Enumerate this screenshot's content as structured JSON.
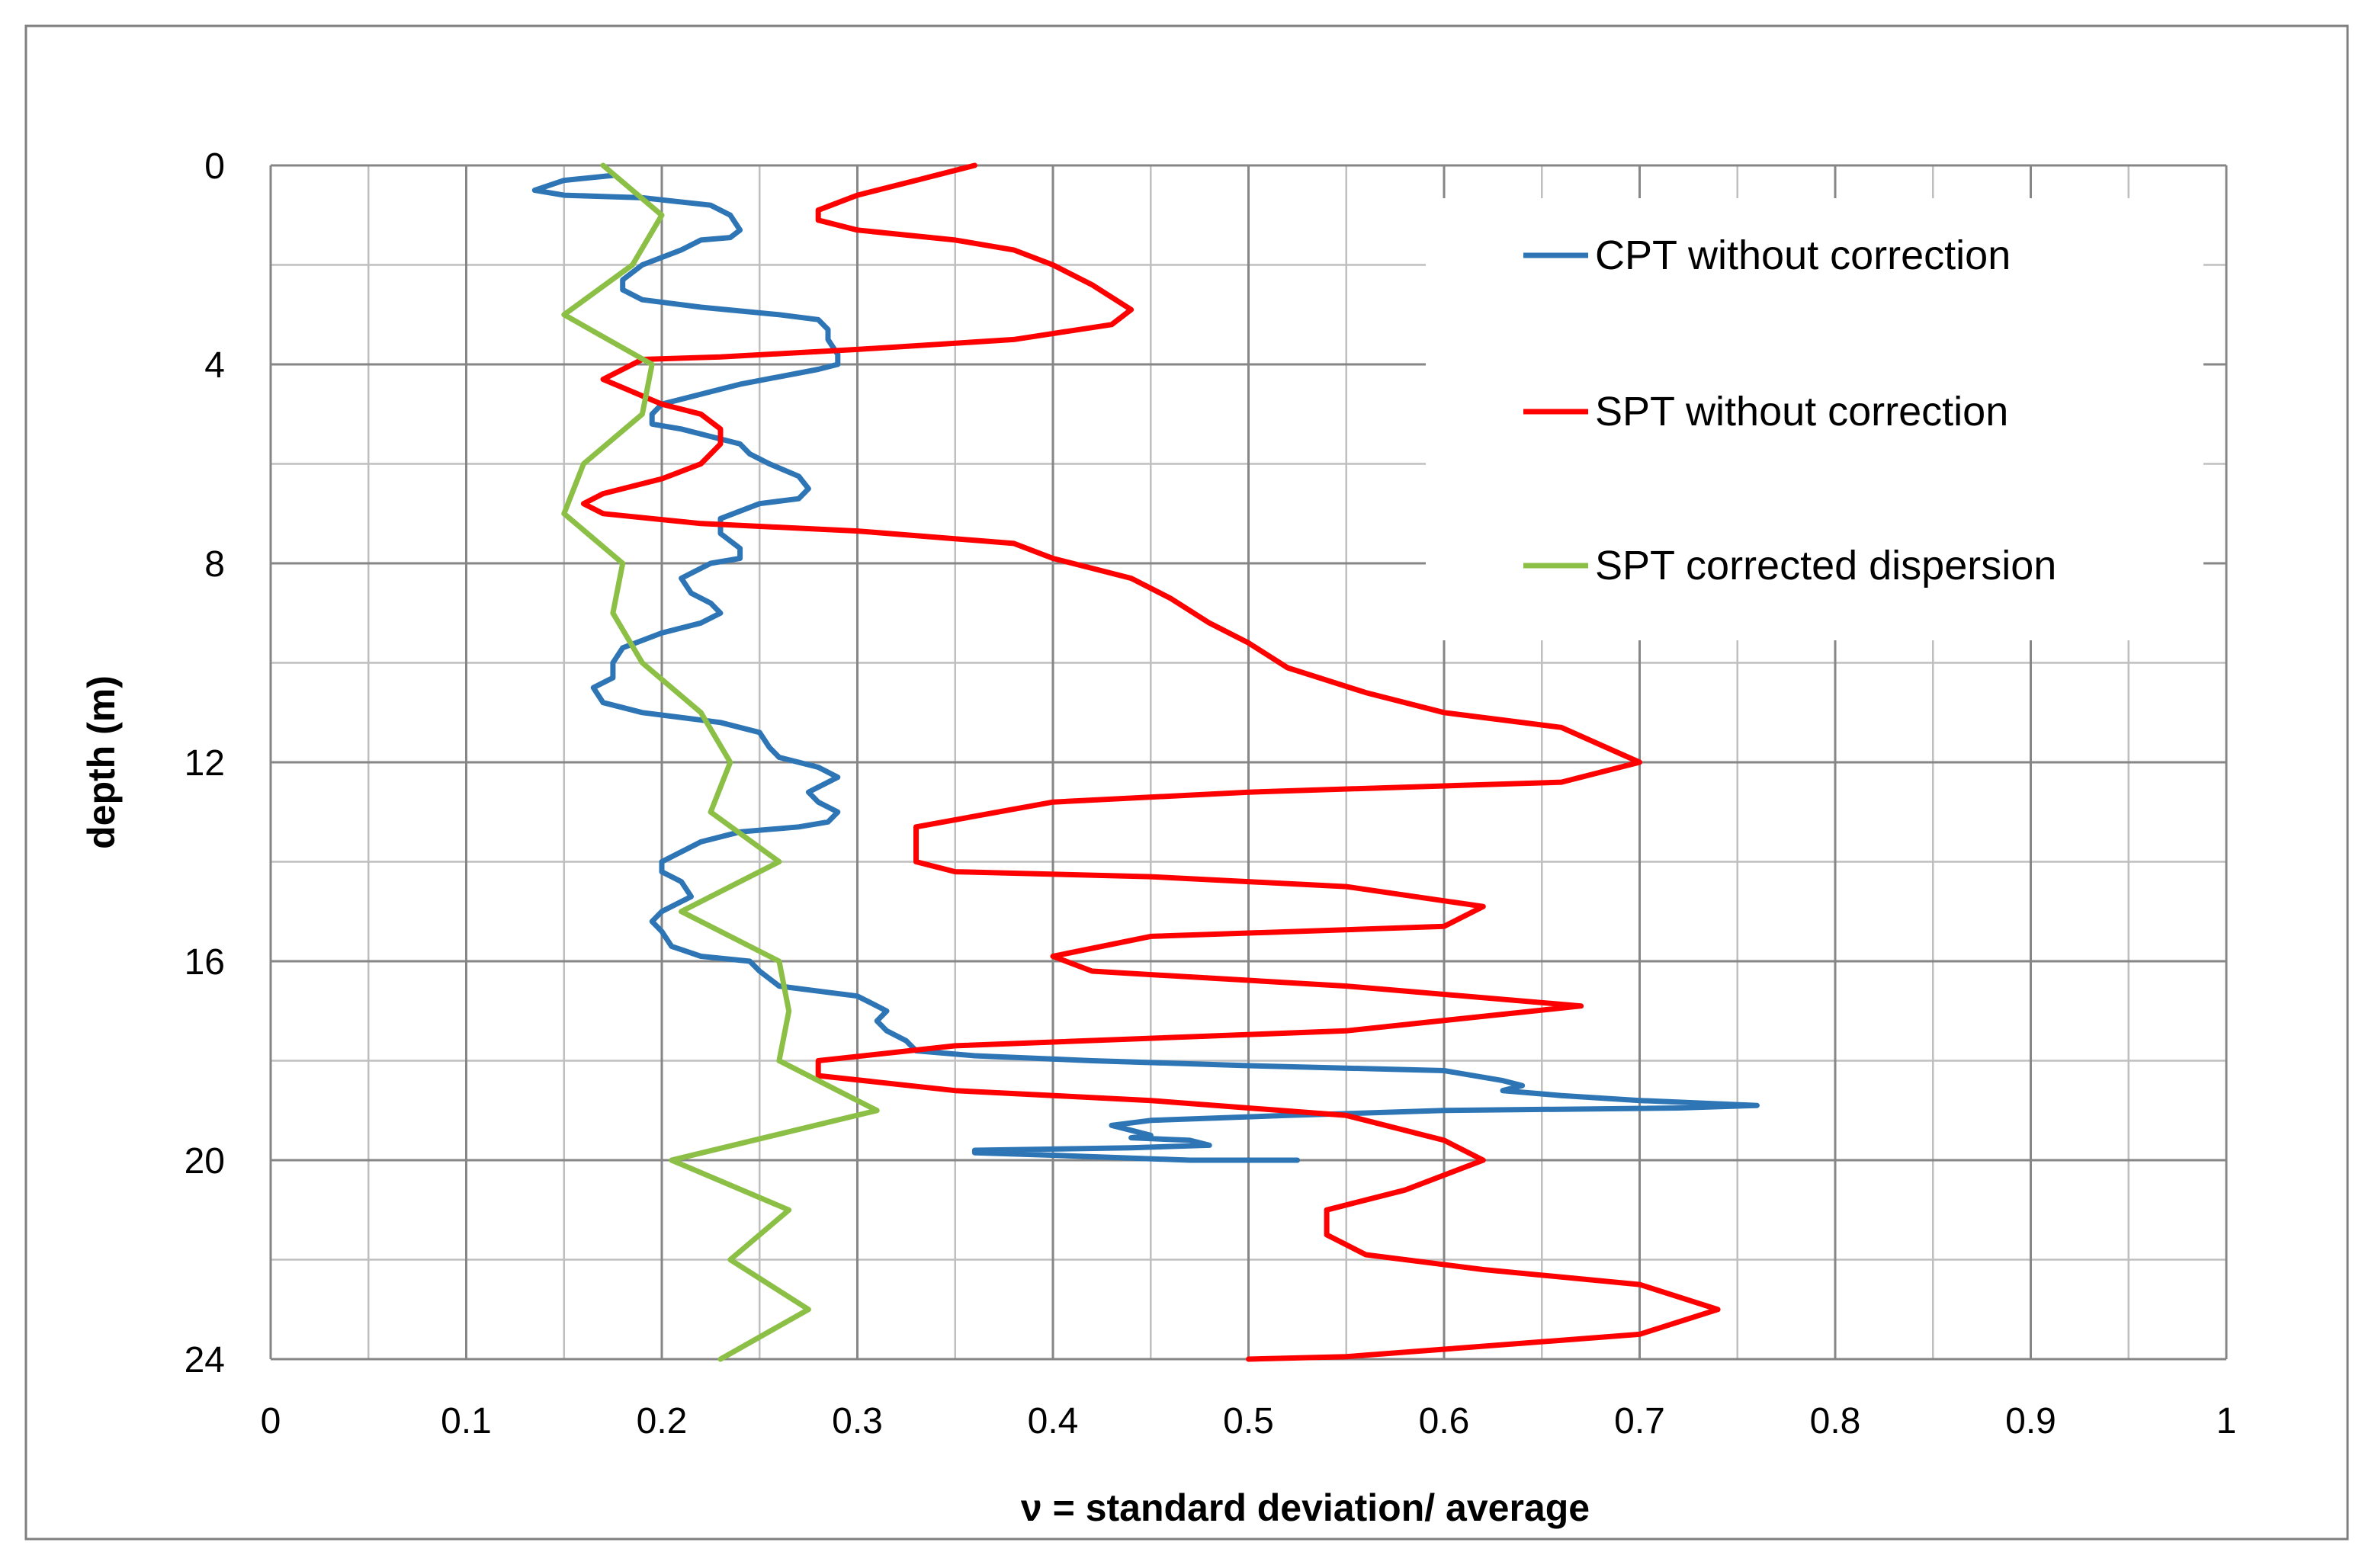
{
  "chart_data": {
    "type": "line",
    "title": "",
    "xlabel": "ν = standard deviation/ average",
    "ylabel": "depth  (m)",
    "xlim": [
      0,
      1
    ],
    "ylim": [
      0,
      24
    ],
    "y_inverted": true,
    "x_ticks": [
      0,
      0.1,
      0.2,
      0.3,
      0.4,
      0.5,
      0.6,
      0.7,
      0.8,
      0.9,
      1
    ],
    "x_tick_labels": [
      "0",
      "0.1",
      "0.2",
      "0.3",
      "0.4",
      "0.5",
      "0.6",
      "0.7",
      "0.8",
      "0.9",
      "1"
    ],
    "y_ticks": [
      0,
      4,
      8,
      12,
      16,
      20,
      24
    ],
    "y_tick_labels": [
      "0",
      "4",
      "8",
      "12",
      "16",
      "20",
      "24"
    ],
    "x_minor_step": 0.05,
    "y_minor_step": 2,
    "grid": true,
    "legend_position": "top-right",
    "series": [
      {
        "name": "CPT without correction",
        "color": "#2e75b6",
        "points": [
          [
            0.175,
            0.2
          ],
          [
            0.15,
            0.3
          ],
          [
            0.135,
            0.5
          ],
          [
            0.15,
            0.6
          ],
          [
            0.19,
            0.65
          ],
          [
            0.225,
            0.8
          ],
          [
            0.235,
            1.0
          ],
          [
            0.24,
            1.3
          ],
          [
            0.235,
            1.45
          ],
          [
            0.22,
            1.5
          ],
          [
            0.21,
            1.7
          ],
          [
            0.19,
            2.0
          ],
          [
            0.18,
            2.3
          ],
          [
            0.18,
            2.5
          ],
          [
            0.19,
            2.7
          ],
          [
            0.22,
            2.85
          ],
          [
            0.26,
            3.0
          ],
          [
            0.28,
            3.1
          ],
          [
            0.285,
            3.3
          ],
          [
            0.285,
            3.5
          ],
          [
            0.29,
            3.8
          ],
          [
            0.29,
            4.0
          ],
          [
            0.28,
            4.1
          ],
          [
            0.26,
            4.25
          ],
          [
            0.24,
            4.4
          ],
          [
            0.22,
            4.6
          ],
          [
            0.2,
            4.8
          ],
          [
            0.195,
            5.0
          ],
          [
            0.195,
            5.2
          ],
          [
            0.21,
            5.3
          ],
          [
            0.225,
            5.45
          ],
          [
            0.24,
            5.6
          ],
          [
            0.245,
            5.8
          ],
          [
            0.255,
            6.0
          ],
          [
            0.27,
            6.25
          ],
          [
            0.275,
            6.5
          ],
          [
            0.27,
            6.7
          ],
          [
            0.25,
            6.8
          ],
          [
            0.23,
            7.1
          ],
          [
            0.23,
            7.4
          ],
          [
            0.24,
            7.7
          ],
          [
            0.24,
            7.9
          ],
          [
            0.225,
            8.0
          ],
          [
            0.21,
            8.3
          ],
          [
            0.215,
            8.6
          ],
          [
            0.225,
            8.8
          ],
          [
            0.23,
            9.0
          ],
          [
            0.22,
            9.2
          ],
          [
            0.2,
            9.4
          ],
          [
            0.18,
            9.7
          ],
          [
            0.175,
            10.0
          ],
          [
            0.175,
            10.3
          ],
          [
            0.165,
            10.5
          ],
          [
            0.17,
            10.8
          ],
          [
            0.19,
            11.0
          ],
          [
            0.23,
            11.2
          ],
          [
            0.25,
            11.4
          ],
          [
            0.255,
            11.7
          ],
          [
            0.26,
            11.9
          ],
          [
            0.28,
            12.1
          ],
          [
            0.29,
            12.3
          ],
          [
            0.28,
            12.5
          ],
          [
            0.275,
            12.6
          ],
          [
            0.28,
            12.8
          ],
          [
            0.29,
            13.0
          ],
          [
            0.285,
            13.2
          ],
          [
            0.27,
            13.3
          ],
          [
            0.24,
            13.4
          ],
          [
            0.22,
            13.6
          ],
          [
            0.21,
            13.8
          ],
          [
            0.2,
            14.0
          ],
          [
            0.2,
            14.2
          ],
          [
            0.21,
            14.4
          ],
          [
            0.215,
            14.7
          ],
          [
            0.2,
            15.0
          ],
          [
            0.195,
            15.2
          ],
          [
            0.2,
            15.4
          ],
          [
            0.205,
            15.7
          ],
          [
            0.22,
            15.9
          ],
          [
            0.245,
            16.0
          ],
          [
            0.25,
            16.2
          ],
          [
            0.26,
            16.5
          ],
          [
            0.28,
            16.6
          ],
          [
            0.3,
            16.7
          ],
          [
            0.31,
            16.9
          ],
          [
            0.315,
            17.0
          ],
          [
            0.31,
            17.2
          ],
          [
            0.315,
            17.4
          ],
          [
            0.325,
            17.6
          ],
          [
            0.33,
            17.8
          ],
          [
            0.36,
            17.9
          ],
          [
            0.42,
            18.0
          ],
          [
            0.5,
            18.1
          ],
          [
            0.6,
            18.2
          ],
          [
            0.63,
            18.4
          ],
          [
            0.64,
            18.5
          ],
          [
            0.63,
            18.6
          ],
          [
            0.66,
            18.7
          ],
          [
            0.7,
            18.8
          ],
          [
            0.76,
            18.9
          ],
          [
            0.72,
            18.95
          ],
          [
            0.6,
            19.0
          ],
          [
            0.52,
            19.1
          ],
          [
            0.45,
            19.2
          ],
          [
            0.43,
            19.3
          ],
          [
            0.44,
            19.4
          ],
          [
            0.45,
            19.5
          ],
          [
            0.44,
            19.55
          ],
          [
            0.47,
            19.6
          ],
          [
            0.48,
            19.7
          ],
          [
            0.44,
            19.75
          ],
          [
            0.36,
            19.8
          ],
          [
            0.36,
            19.85
          ],
          [
            0.4,
            19.9
          ],
          [
            0.47,
            20.0
          ],
          [
            0.525,
            20.0
          ]
        ]
      },
      {
        "name": "SPT without correction",
        "color": "#ff0000",
        "points": [
          [
            0.36,
            0.0
          ],
          [
            0.33,
            0.3
          ],
          [
            0.3,
            0.6
          ],
          [
            0.28,
            0.9
          ],
          [
            0.28,
            1.1
          ],
          [
            0.3,
            1.3
          ],
          [
            0.35,
            1.5
          ],
          [
            0.38,
            1.7
          ],
          [
            0.4,
            2.0
          ],
          [
            0.42,
            2.4
          ],
          [
            0.44,
            2.9
          ],
          [
            0.43,
            3.2
          ],
          [
            0.38,
            3.5
          ],
          [
            0.3,
            3.7
          ],
          [
            0.23,
            3.85
          ],
          [
            0.19,
            3.9
          ],
          [
            0.17,
            4.3
          ],
          [
            0.2,
            4.8
          ],
          [
            0.22,
            5.0
          ],
          [
            0.23,
            5.3
          ],
          [
            0.23,
            5.6
          ],
          [
            0.22,
            6.0
          ],
          [
            0.2,
            6.3
          ],
          [
            0.17,
            6.6
          ],
          [
            0.16,
            6.8
          ],
          [
            0.17,
            7.0
          ],
          [
            0.22,
            7.2
          ],
          [
            0.3,
            7.35
          ],
          [
            0.38,
            7.6
          ],
          [
            0.4,
            7.9
          ],
          [
            0.42,
            8.1
          ],
          [
            0.44,
            8.3
          ],
          [
            0.46,
            8.7
          ],
          [
            0.48,
            9.2
          ],
          [
            0.5,
            9.6
          ],
          [
            0.52,
            10.1
          ],
          [
            0.56,
            10.6
          ],
          [
            0.6,
            11.0
          ],
          [
            0.66,
            11.3
          ],
          [
            0.7,
            12.0
          ],
          [
            0.66,
            12.4
          ],
          [
            0.5,
            12.6
          ],
          [
            0.4,
            12.8
          ],
          [
            0.33,
            13.3
          ],
          [
            0.33,
            14.0
          ],
          [
            0.35,
            14.2
          ],
          [
            0.45,
            14.3
          ],
          [
            0.55,
            14.5
          ],
          [
            0.62,
            14.9
          ],
          [
            0.6,
            15.3
          ],
          [
            0.45,
            15.5
          ],
          [
            0.4,
            15.9
          ],
          [
            0.42,
            16.2
          ],
          [
            0.55,
            16.5
          ],
          [
            0.67,
            16.9
          ],
          [
            0.55,
            17.4
          ],
          [
            0.35,
            17.7
          ],
          [
            0.28,
            18.0
          ],
          [
            0.28,
            18.3
          ],
          [
            0.35,
            18.6
          ],
          [
            0.45,
            18.8
          ],
          [
            0.55,
            19.1
          ],
          [
            0.6,
            19.6
          ],
          [
            0.62,
            20.0
          ],
          [
            0.58,
            20.6
          ],
          [
            0.54,
            21.0
          ],
          [
            0.54,
            21.5
          ],
          [
            0.56,
            21.9
          ],
          [
            0.62,
            22.2
          ],
          [
            0.7,
            22.5
          ],
          [
            0.74,
            23.0
          ],
          [
            0.7,
            23.5
          ],
          [
            0.6,
            23.8
          ],
          [
            0.55,
            23.95
          ],
          [
            0.5,
            24.0
          ]
        ]
      },
      {
        "name": "SPT corrected dispersion",
        "color": "#8cbf45",
        "points": [
          [
            0.17,
            0.0
          ],
          [
            0.2,
            1.0
          ],
          [
            0.185,
            2.0
          ],
          [
            0.15,
            3.0
          ],
          [
            0.195,
            4.0
          ],
          [
            0.19,
            5.0
          ],
          [
            0.16,
            6.0
          ],
          [
            0.15,
            7.0
          ],
          [
            0.18,
            8.0
          ],
          [
            0.175,
            9.0
          ],
          [
            0.19,
            10.0
          ],
          [
            0.22,
            11.0
          ],
          [
            0.235,
            12.0
          ],
          [
            0.225,
            13.0
          ],
          [
            0.26,
            14.0
          ],
          [
            0.21,
            15.0
          ],
          [
            0.26,
            16.0
          ],
          [
            0.265,
            17.0
          ],
          [
            0.26,
            18.0
          ],
          [
            0.31,
            19.0
          ],
          [
            0.205,
            20.0
          ],
          [
            0.265,
            21.0
          ],
          [
            0.235,
            22.0
          ],
          [
            0.275,
            23.0
          ],
          [
            0.23,
            24.0
          ]
        ]
      }
    ]
  }
}
